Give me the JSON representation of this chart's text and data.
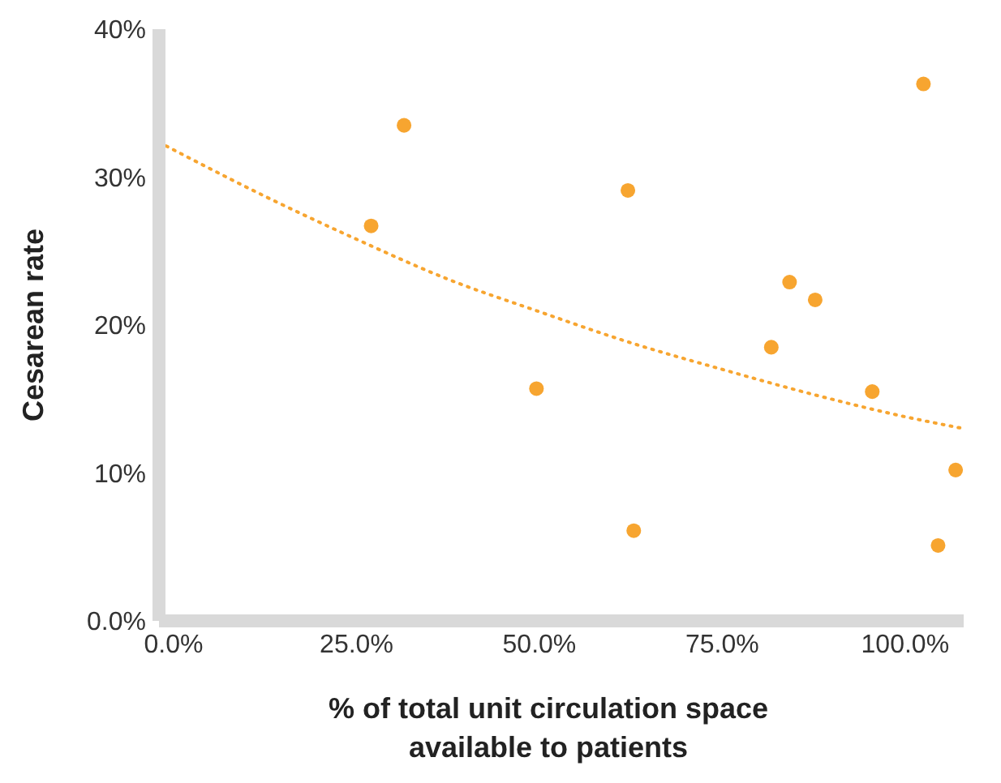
{
  "chart_data": {
    "type": "scatter",
    "xlabel": "% of total unit circulation space available to patients",
    "ylabel": "Cesarean rate",
    "xlim": [
      -2,
      108
    ],
    "ylim": [
      0,
      40
    ],
    "xticks": [
      {
        "value": 0,
        "label": "0.0%"
      },
      {
        "value": 25,
        "label": "25.0%"
      },
      {
        "value": 50,
        "label": "50.0%"
      },
      {
        "value": 75,
        "label": "75.0%"
      },
      {
        "value": 100,
        "label": "100.0%"
      }
    ],
    "yticks": [
      {
        "value": 0,
        "label": "0.0%"
      },
      {
        "value": 10,
        "label": "10%"
      },
      {
        "value": 20,
        "label": "20%"
      },
      {
        "value": 30,
        "label": "30%"
      },
      {
        "value": 40,
        "label": "40%"
      }
    ],
    "grid": false,
    "series": [
      {
        "color": "#f7a530",
        "marker": "circle",
        "x": [
          27,
          31.5,
          49.6,
          62.1,
          62.9,
          81.7,
          84.2,
          87.7,
          95.5,
          102.5,
          104.5,
          106.9
        ],
        "values": [
          26.7,
          33.5,
          15.7,
          29.1,
          6.1,
          18.5,
          22.9,
          21.7,
          15.5,
          36.3,
          5.1,
          10.2
        ]
      },
      {
        "type": "line",
        "color": "#f7a530",
        "marker": "none",
        "line_style": "dotted",
        "x": [
          -1,
          12.5,
          25,
          37.5,
          50,
          62.5,
          75,
          87.5,
          100,
          108
        ],
        "values": [
          32.1,
          28.7,
          25.8,
          23.1,
          20.9,
          18.8,
          17.0,
          15.3,
          13.8,
          13.0
        ]
      }
    ]
  }
}
